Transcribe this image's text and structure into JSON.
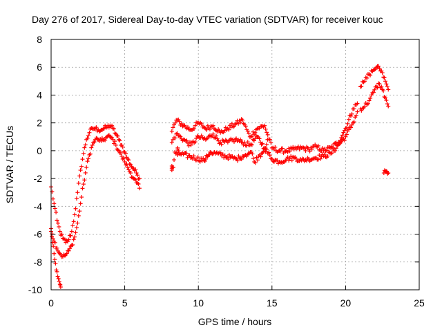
{
  "chart_data": {
    "type": "scatter",
    "title": "Day 276 of 2017, Sidereal Day-to-day VTEC variation (SDTVAR) for receiver kouc",
    "xlabel": "GPS time / hours",
    "ylabel": "SDTVAR / TECUs",
    "xlim": [
      0,
      25
    ],
    "ylim": [
      -10,
      8
    ],
    "xticks": [
      0,
      5,
      10,
      15,
      20,
      25
    ],
    "yticks": [
      -10,
      -8,
      -6,
      -4,
      -2,
      0,
      2,
      4,
      6,
      8
    ],
    "grid": true,
    "marker": "+",
    "color": "#ff0000",
    "series": [
      {
        "name": "main_upper",
        "x": [
          0.0,
          0.2,
          0.4,
          0.6,
          0.8,
          1.0,
          1.2,
          1.4,
          1.6,
          1.8,
          2.0,
          2.2,
          2.4,
          2.6,
          2.8,
          3.0,
          3.2,
          3.4,
          3.6,
          3.8,
          4.0,
          4.2,
          4.4,
          4.6,
          4.8,
          5.0,
          5.2,
          5.4,
          5.6,
          5.8,
          6.0
        ],
        "y": [
          -2.6,
          -3.8,
          -5.0,
          -5.8,
          -6.3,
          -6.6,
          -6.4,
          -5.8,
          -4.6,
          -3.0,
          -1.4,
          -0.2,
          0.8,
          1.3,
          1.6,
          1.6,
          1.5,
          1.5,
          1.6,
          1.7,
          1.8,
          1.6,
          1.2,
          0.8,
          0.4,
          -0.1,
          -0.6,
          -1.0,
          -1.3,
          -1.6,
          -2.0
        ]
      },
      {
        "name": "main_lower",
        "x": [
          0.0,
          0.2,
          0.4,
          0.6,
          0.8,
          1.0,
          1.2,
          1.4,
          1.6,
          1.8,
          2.0,
          2.2,
          2.4,
          2.6,
          2.8,
          3.0,
          3.2,
          3.4,
          3.6,
          3.8,
          4.0,
          4.2,
          4.4,
          4.6,
          4.8,
          5.0,
          5.2,
          5.4,
          5.6,
          5.8,
          6.0
        ],
        "y": [
          -5.6,
          -6.5,
          -7.0,
          -7.4,
          -7.6,
          -7.5,
          -7.2,
          -6.8,
          -6.2,
          -5.2,
          -3.8,
          -2.4,
          -1.2,
          -0.3,
          0.4,
          0.8,
          0.8,
          0.7,
          0.8,
          1.0,
          1.0,
          0.8,
          0.4,
          0.0,
          -0.4,
          -0.8,
          -1.2,
          -1.6,
          -2.0,
          -2.3,
          -2.7
        ]
      },
      {
        "name": "dip_tail",
        "x": [
          0.0,
          0.1,
          0.2,
          0.3,
          0.4,
          0.5,
          0.6,
          0.65
        ],
        "y": [
          -5.8,
          -6.6,
          -7.4,
          -8.1,
          -8.7,
          -9.2,
          -9.6,
          -9.8
        ]
      },
      {
        "name": "mid_upper",
        "x": [
          8.2,
          8.5,
          9.0,
          9.5,
          10.0,
          10.5,
          11.0,
          11.5,
          12.0,
          12.5,
          13.0,
          13.5,
          14.0,
          14.5,
          15.0,
          15.5,
          16.0,
          16.5,
          17.0,
          17.5,
          18.0,
          18.5,
          19.0,
          19.5,
          20.0,
          20.5,
          20.8
        ],
        "y": [
          1.4,
          2.2,
          1.8,
          1.5,
          2.0,
          1.6,
          1.8,
          1.3,
          1.6,
          1.9,
          2.2,
          1.0,
          1.6,
          1.8,
          0.2,
          0.0,
          0.0,
          0.1,
          0.2,
          0.1,
          0.3,
          0.0,
          0.2,
          0.6,
          1.6,
          3.0,
          3.4
        ]
      },
      {
        "name": "mid_lower",
        "x": [
          8.2,
          8.5,
          9.0,
          9.5,
          10.0,
          10.5,
          11.0,
          11.5,
          12.0,
          12.5,
          13.0,
          13.5,
          14.0,
          14.5,
          15.0,
          15.5,
          16.0,
          16.5,
          17.0,
          17.5,
          18.0,
          18.5,
          19.0,
          19.5,
          20.0,
          20.5,
          20.8
        ],
        "y": [
          0.6,
          1.2,
          0.8,
          0.4,
          1.0,
          0.8,
          1.2,
          0.6,
          0.6,
          0.8,
          0.6,
          0.4,
          1.0,
          0.2,
          -0.6,
          -0.8,
          -0.6,
          -0.5,
          -0.7,
          -0.6,
          -0.5,
          -0.4,
          -0.2,
          0.4,
          1.0,
          2.0,
          2.8
        ]
      },
      {
        "name": "mid_scatter",
        "x": [
          8.2,
          8.2,
          8.3,
          8.4,
          8.6,
          8.6,
          8.7,
          10.4,
          10.5,
          10.6,
          10.7,
          10.8,
          12.6,
          12.8,
          13.0,
          13.2,
          13.4,
          13.6,
          13.8,
          14.1,
          14.3,
          14.5,
          14.7
        ],
        "y": [
          -1.1,
          -1.4,
          -1.2,
          -0.1,
          -0.3,
          0.2,
          -0.2,
          -0.7,
          -0.6,
          -0.4,
          -0.3,
          -0.1,
          -0.6,
          -0.5,
          -0.4,
          -0.3,
          -0.2,
          -0.1,
          -0.8,
          -0.4,
          -0.2,
          0.1,
          0.8
        ]
      },
      {
        "name": "late_upper",
        "x": [
          21.0,
          21.3,
          21.6,
          21.9,
          22.1,
          22.3,
          22.5,
          22.7,
          22.9
        ],
        "y": [
          4.6,
          5.0,
          5.5,
          5.8,
          6.0,
          5.9,
          5.6,
          5.0,
          4.4
        ]
      },
      {
        "name": "late_lower",
        "x": [
          21.0,
          21.3,
          21.6,
          21.9,
          22.1,
          22.3,
          22.5,
          22.7,
          22.9
        ],
        "y": [
          3.0,
          3.2,
          3.6,
          4.2,
          4.6,
          4.8,
          4.4,
          3.8,
          3.2
        ]
      },
      {
        "name": "late_outlier",
        "x": [
          22.6,
          22.7,
          22.8,
          22.9
        ],
        "y": [
          -1.6,
          -1.5,
          -1.5,
          -1.6
        ]
      }
    ]
  }
}
